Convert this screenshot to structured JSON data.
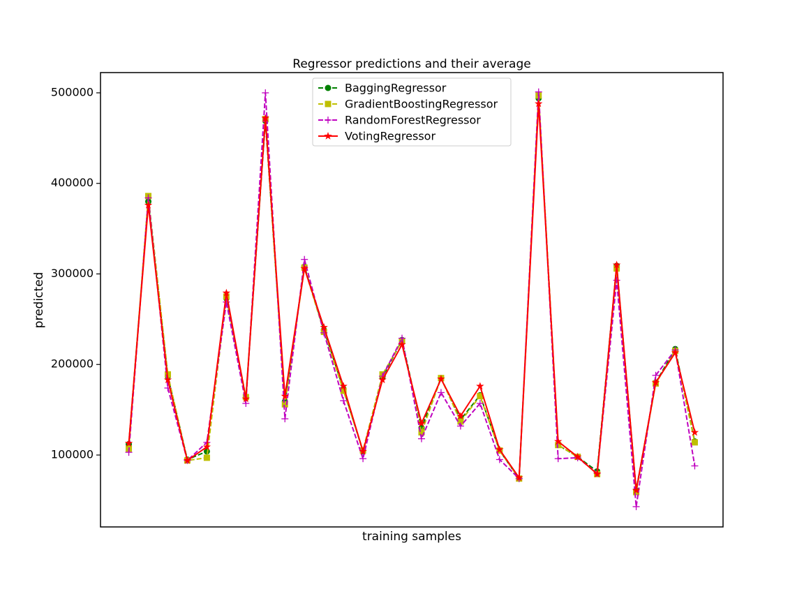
{
  "chart_data": {
    "type": "line",
    "title": "Regressor predictions and their average",
    "xlabel": "training samples",
    "ylabel": "predicted",
    "x": [
      0,
      1,
      2,
      3,
      4,
      5,
      6,
      7,
      8,
      9,
      10,
      11,
      12,
      13,
      14,
      15,
      16,
      17,
      18,
      19,
      20,
      21,
      22,
      23,
      24,
      25,
      26,
      27,
      28,
      29
    ],
    "xlim": [
      -1.45,
      30.45
    ],
    "ylim": [
      20600,
      522350
    ],
    "yticks": [
      100000,
      200000,
      300000,
      400000,
      500000
    ],
    "legend": "upper center",
    "series": [
      {
        "name": "BaggingRegressor",
        "color": "#008000",
        "marker": "circle",
        "dash": true,
        "values": [
          112000,
          380000,
          187000,
          95000,
          104000,
          273000,
          163000,
          469000,
          159000,
          308000,
          238000,
          173000,
          104000,
          186000,
          227000,
          130000,
          185000,
          139000,
          166000,
          105000,
          74000,
          494000,
          111000,
          98000,
          82000,
          309000,
          61000,
          180000,
          217000,
          115000
        ]
      },
      {
        "name": "GradientBoostingRegressor",
        "color": "#bfbf00",
        "marker": "square",
        "dash": true,
        "values": [
          107000,
          386000,
          189000,
          94000,
          97000,
          275000,
          164000,
          471000,
          156000,
          307000,
          236000,
          171000,
          105000,
          189000,
          226000,
          125000,
          185000,
          137000,
          165000,
          105000,
          74000,
          497000,
          111000,
          98000,
          79000,
          306000,
          59000,
          179000,
          215000,
          114000
        ]
      },
      {
        "name": "RandomForestRegressor",
        "color": "#bf00bf",
        "marker": "plus",
        "dash": true,
        "values": [
          103000,
          384000,
          174000,
          94000,
          114000,
          269000,
          157000,
          500000,
          140000,
          316000,
          235000,
          160000,
          96000,
          187000,
          229000,
          118000,
          169000,
          132000,
          157000,
          95000,
          74000,
          501000,
          96000,
          97000,
          80000,
          293000,
          43000,
          188000,
          216000,
          88000
        ]
      },
      {
        "name": "VotingRegressor",
        "color": "#ff0000",
        "marker": "star",
        "dash": false,
        "values": [
          113000,
          376000,
          183000,
          94000,
          109000,
          279000,
          162000,
          472000,
          165000,
          306000,
          241000,
          176000,
          104000,
          183000,
          222000,
          135000,
          184000,
          143000,
          176000,
          106000,
          75000,
          488000,
          115000,
          98000,
          79000,
          310000,
          61000,
          180000,
          213000,
          125000
        ]
      }
    ]
  }
}
